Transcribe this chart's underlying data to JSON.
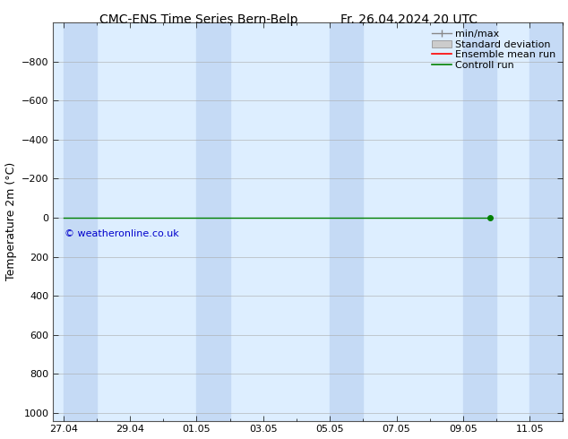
{
  "title_left": "CMC-ENS Time Series Bern-Belp",
  "title_right": "Fr. 26.04.2024 20 UTC",
  "ylabel": "Temperature 2m (°C)",
  "ylim_top": -1000,
  "ylim_bottom": 1040,
  "yticks": [
    -800,
    -600,
    -400,
    -200,
    0,
    200,
    400,
    600,
    800,
    1000
  ],
  "x_labels": [
    "27.04",
    "29.04",
    "01.05",
    "03.05",
    "05.05",
    "07.05",
    "09.05",
    "11.05"
  ],
  "x_tick_vals": [
    0,
    2,
    4,
    6,
    8,
    10,
    12,
    14
  ],
  "xlim": [
    -0.3,
    15.0
  ],
  "shade_bands": [
    [
      0,
      1
    ],
    [
      4,
      5
    ],
    [
      8,
      9
    ],
    [
      12,
      13
    ],
    [
      14,
      15
    ]
  ],
  "green_line_x": [
    0,
    12.8
  ],
  "green_line_y": [
    0,
    0
  ],
  "green_dot_x": 12.8,
  "green_dot_y": 0,
  "legend_entries": [
    "min/max",
    "Standard deviation",
    "Ensemble mean run",
    "Controll run"
  ],
  "legend_colors_line": [
    "#888888",
    "#bbbbbb",
    "#ff0000",
    "#008000"
  ],
  "watermark": "© weatheronline.co.uk",
  "watermark_color": "#0000cc",
  "bg_color": "#ffffff",
  "plot_bg_color": "#ddeeff",
  "shade_color": "#c5daf5",
  "title_fontsize": 10,
  "axis_label_fontsize": 9,
  "tick_fontsize": 8,
  "legend_fontsize": 8
}
